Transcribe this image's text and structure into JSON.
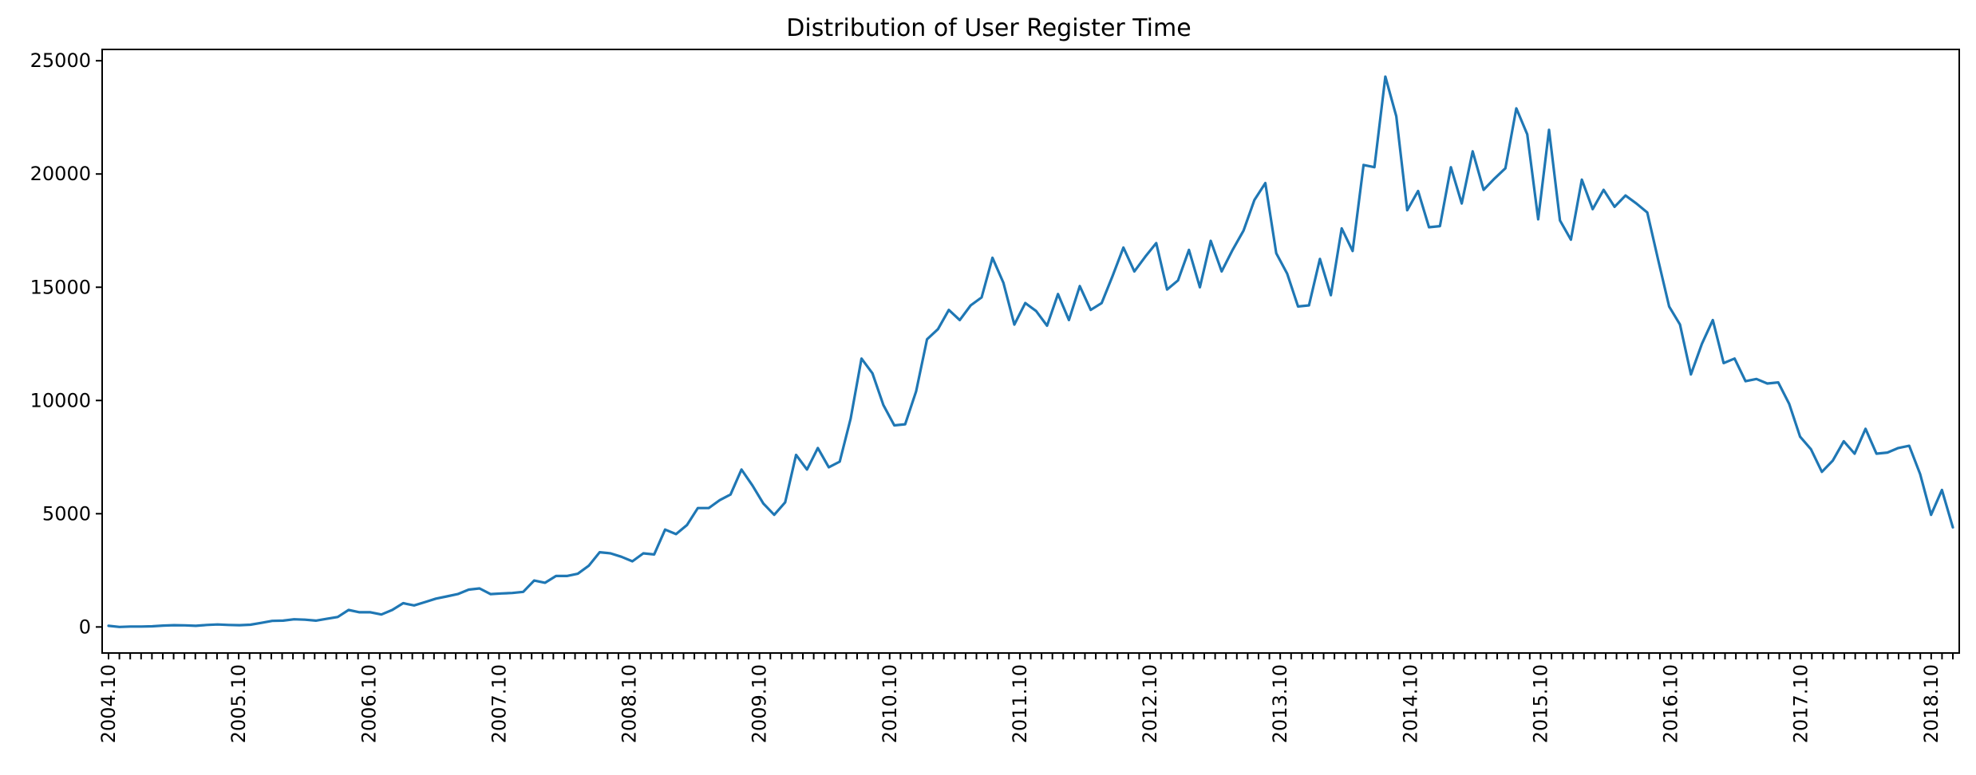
{
  "chart_data": {
    "type": "line",
    "title": "Distribution of User Register Time",
    "xlabel": "",
    "ylabel": "",
    "x_start": "2004.10",
    "x_end": "2018.12",
    "x_tick_labels": [
      "2004.10",
      "2005.10",
      "2006.10",
      "2007.10",
      "2008.10",
      "2009.10",
      "2010.10",
      "2011.10",
      "2012.10",
      "2013.10",
      "2014.10",
      "2015.10",
      "2016.10",
      "2017.10",
      "2018.10"
    ],
    "y_ticks": [
      0,
      5000,
      10000,
      15000,
      20000,
      25000
    ],
    "ylim": [
      -1150,
      25500
    ],
    "grid": false,
    "color": "#1f77b4",
    "series": [
      {
        "values": [
          50,
          0,
          20,
          20,
          30,
          60,
          80,
          70,
          50,
          90,
          110,
          90,
          80,
          100,
          180,
          270,
          280,
          340,
          320,
          280,
          360,
          440,
          750,
          650,
          650,
          550,
          750,
          1050,
          950,
          1100,
          1250,
          1350,
          1450,
          1650,
          1700,
          1450,
          1480,
          1500,
          1550,
          2050,
          1950,
          2250,
          2250,
          2350,
          2700,
          3300,
          3250,
          3100,
          2900,
          3250,
          3200,
          4300,
          4100,
          4500,
          5250,
          5250,
          5600,
          5850,
          6950,
          6250,
          5450,
          4950,
          5500,
          7600,
          6950,
          7900,
          7050,
          7300,
          9200,
          11850,
          11200,
          9800,
          8900,
          8950,
          10400,
          12700,
          13150,
          14000,
          13550,
          14200,
          14550,
          16300,
          15200,
          13350,
          14300,
          13950,
          13300,
          14700,
          13550,
          15050,
          14000,
          14300,
          15500,
          16750,
          15700,
          16350,
          16950,
          14900,
          15300,
          16650,
          15000,
          17050,
          15700,
          16650,
          17500,
          18850,
          19600,
          16500,
          15600,
          14150,
          14200,
          16250,
          14650,
          17600,
          16600,
          20400,
          20300,
          24300,
          22550,
          18400,
          19250,
          17650,
          17700,
          20300,
          18700,
          21000,
          19300,
          19800,
          20250,
          22900,
          21750,
          18000,
          21950,
          17950,
          17100,
          19750,
          18450,
          19300,
          18550,
          19050,
          18700,
          18300,
          16200,
          14150,
          13350,
          11150,
          12500,
          13550,
          11650,
          11850,
          10850,
          10950,
          10750,
          10800,
          9850,
          8400,
          7850,
          6850,
          7350,
          8200,
          7650,
          8750,
          7650,
          7700,
          7900,
          8000,
          6750,
          4950,
          6050,
          4400
        ]
      }
    ]
  }
}
